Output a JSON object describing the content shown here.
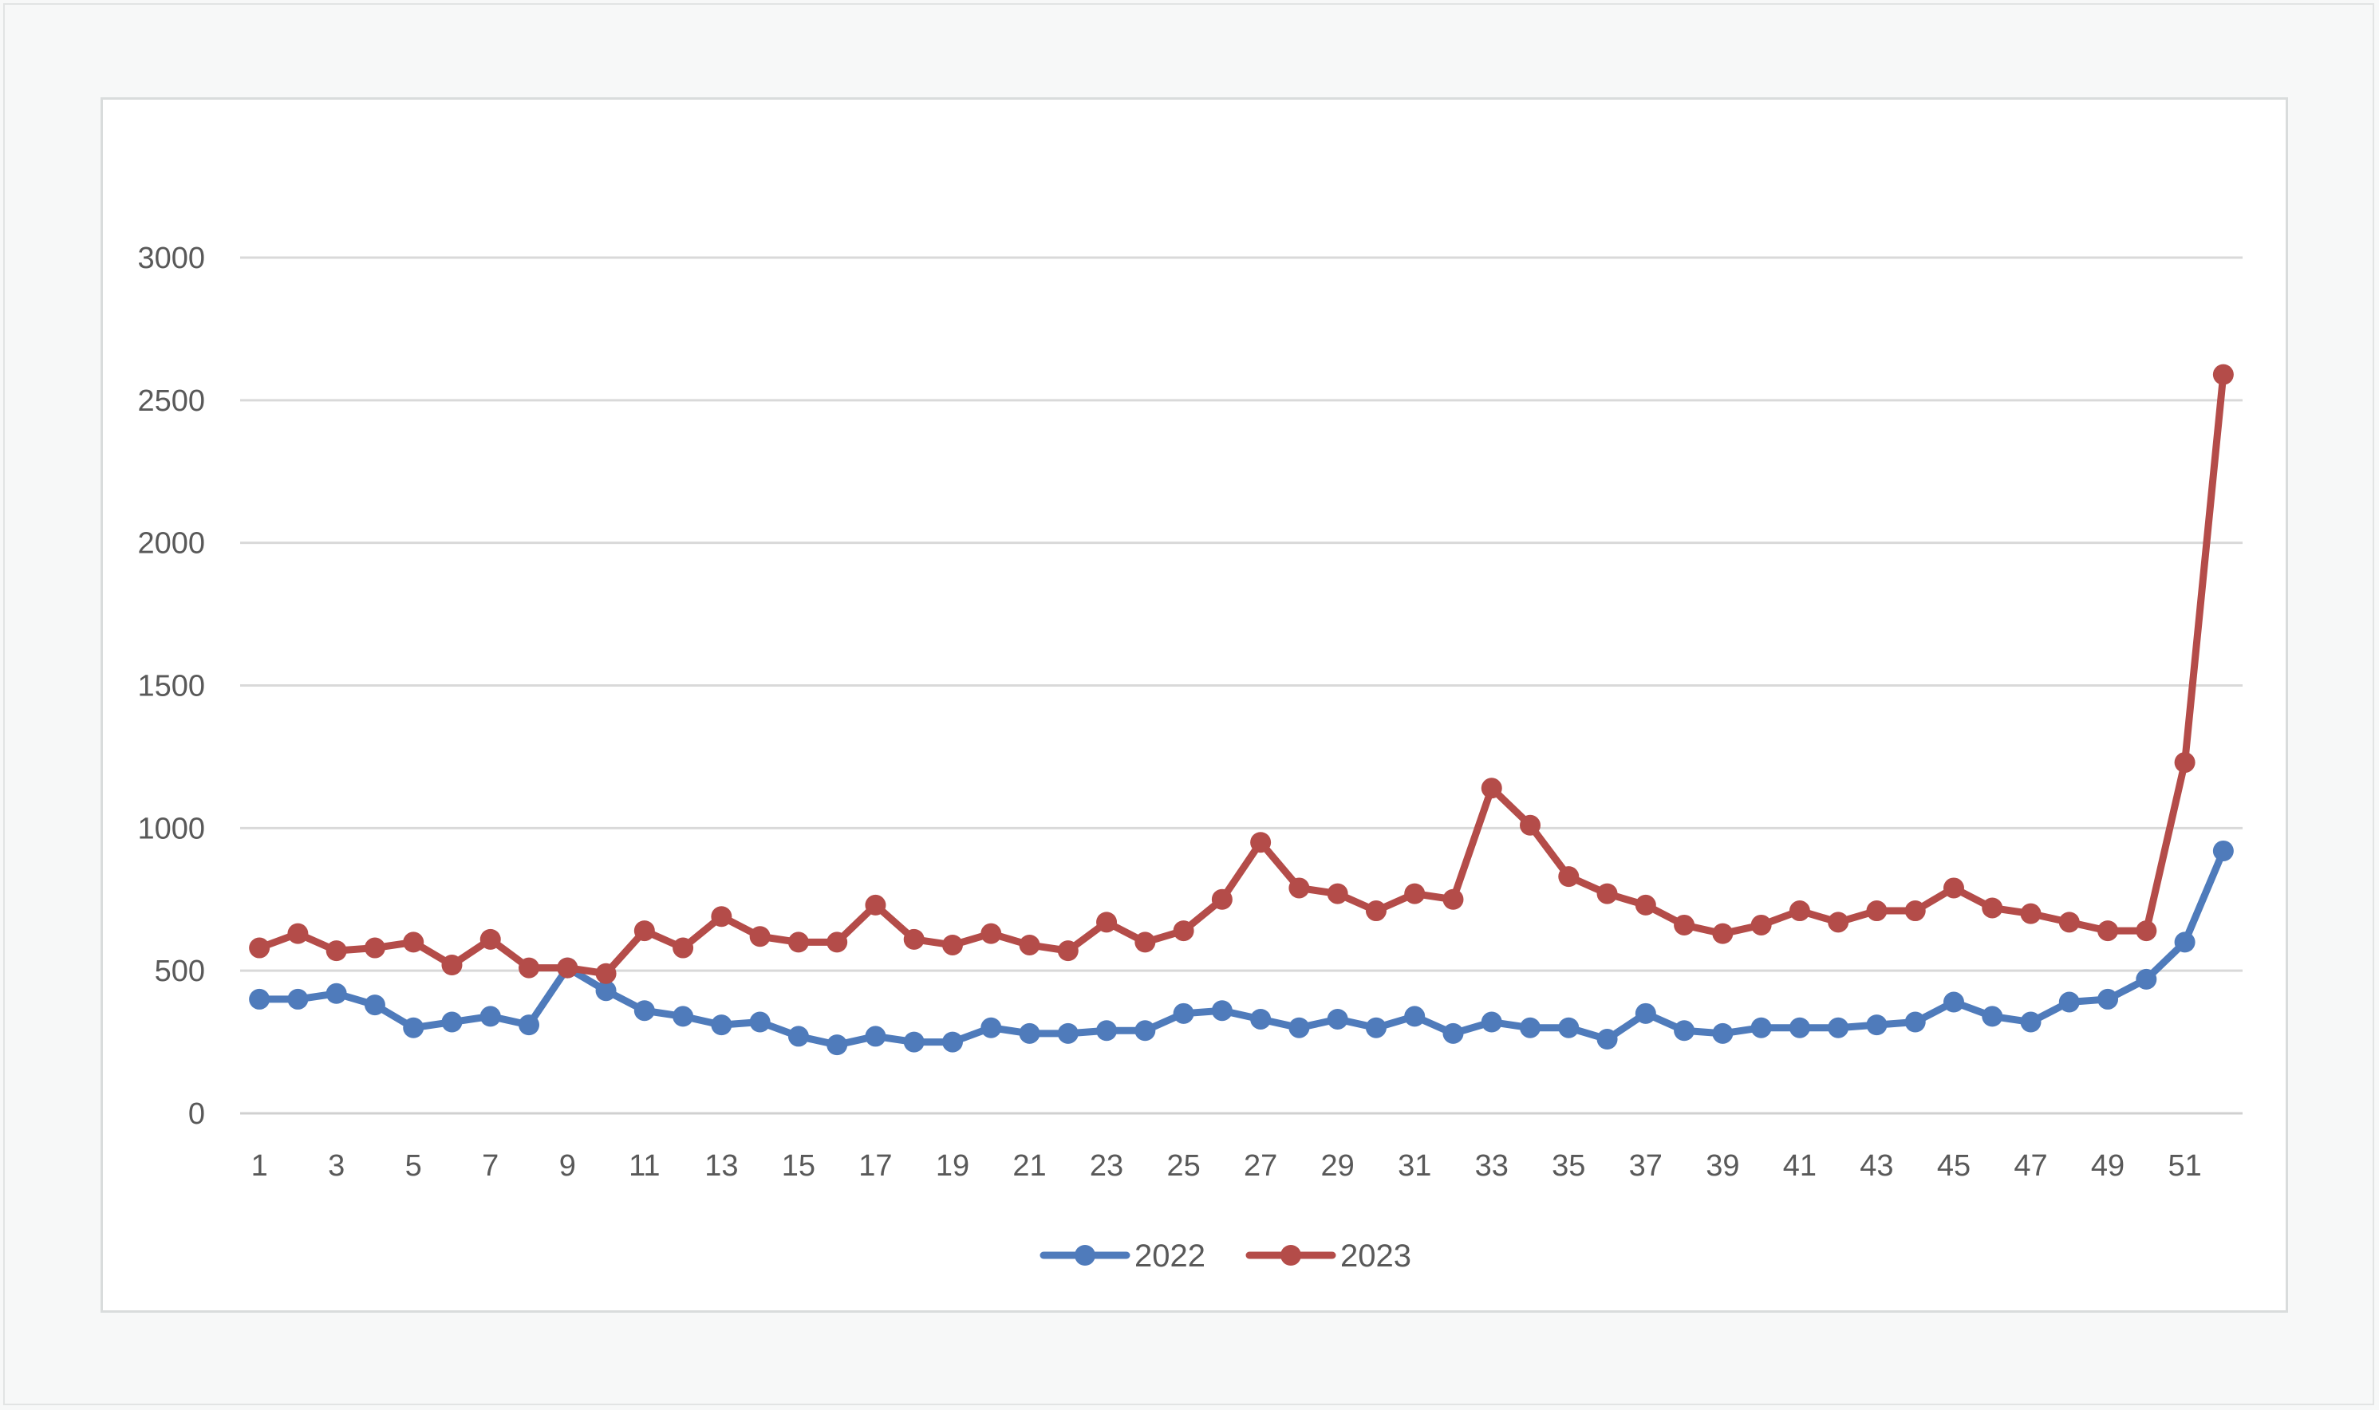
{
  "chart_data": {
    "type": "line",
    "title": "",
    "xlabel": "",
    "ylabel": "",
    "ylim": [
      0,
      3000
    ],
    "yticks": [
      0,
      500,
      1000,
      1500,
      2000,
      2500,
      3000
    ],
    "xtick_labels": [
      "1",
      "3",
      "5",
      "7",
      "9",
      "11",
      "13",
      "15",
      "17",
      "19",
      "21",
      "23",
      "25",
      "27",
      "29",
      "31",
      "33",
      "35",
      "37",
      "39",
      "41",
      "43",
      "45",
      "47",
      "49",
      "51"
    ],
    "x": [
      1,
      2,
      3,
      4,
      5,
      6,
      7,
      8,
      9,
      10,
      11,
      12,
      13,
      14,
      15,
      16,
      17,
      18,
      19,
      20,
      21,
      22,
      23,
      24,
      25,
      26,
      27,
      28,
      29,
      30,
      31,
      32,
      33,
      34,
      35,
      36,
      37,
      38,
      39,
      40,
      41,
      42,
      43,
      44,
      45,
      46,
      47,
      48,
      49,
      50,
      51,
      52
    ],
    "grid": true,
    "legend_position": "bottom",
    "series": [
      {
        "name": "2022",
        "color": "#4f7bbb",
        "values": [
          400,
          400,
          420,
          380,
          300,
          320,
          340,
          310,
          510,
          430,
          360,
          340,
          310,
          320,
          270,
          240,
          270,
          250,
          250,
          300,
          280,
          280,
          290,
          290,
          350,
          360,
          330,
          300,
          330,
          300,
          340,
          280,
          320,
          300,
          300,
          260,
          350,
          290,
          280,
          300,
          300,
          300,
          310,
          320,
          390,
          340,
          320,
          390,
          400,
          470,
          600,
          920
        ]
      },
      {
        "name": "2023",
        "color": "#b44c49",
        "values": [
          580,
          630,
          570,
          580,
          600,
          520,
          610,
          510,
          510,
          490,
          640,
          580,
          690,
          620,
          600,
          600,
          730,
          610,
          590,
          630,
          590,
          570,
          670,
          600,
          640,
          750,
          950,
          790,
          770,
          710,
          770,
          750,
          1140,
          1010,
          830,
          770,
          730,
          660,
          630,
          660,
          710,
          670,
          710,
          710,
          790,
          720,
          700,
          670,
          640,
          640,
          1230,
          2590
        ]
      }
    ]
  }
}
